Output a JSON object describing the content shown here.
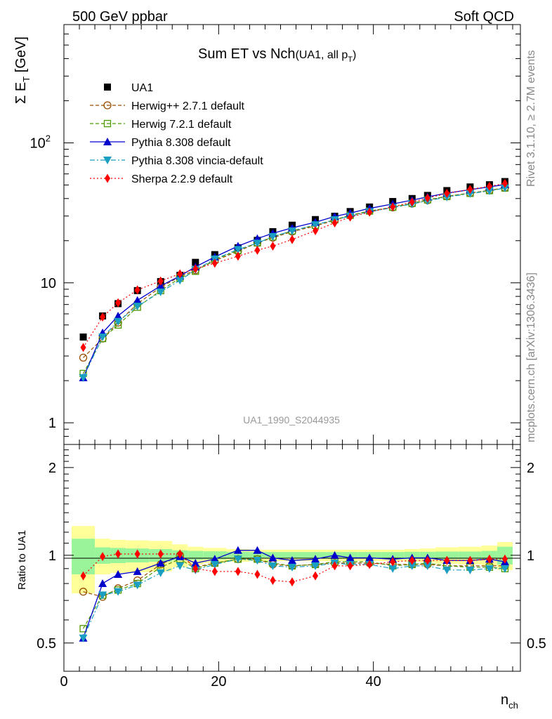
{
  "header": {
    "left": "500 GeV ppbar",
    "right": "Soft QCD"
  },
  "side_labels": {
    "top": "Rivet 3.1.10, ≥ 2.7M events",
    "bottom": "mcplots.cern.ch [arXiv:1306.3436]"
  },
  "chart_data": [
    {
      "type": "line",
      "title_main": "Sum ET vs Nch",
      "title_sub": "(UA1, all p",
      "title_sub_index": "T",
      "title_sub_close": ")",
      "ylabel_main": "Σ E",
      "ylabel_index": "T",
      "ylabel_unit": " [GeV]",
      "xlabel_main": "n",
      "xlabel_index": "ch",
      "watermark": "UA1_1990_S2044935",
      "yscale": "log",
      "xlim": [
        0,
        59
      ],
      "ylim": [
        0.7,
        700
      ],
      "x_ticks": [
        "0",
        "20",
        "40"
      ],
      "y_ticks": [
        "1",
        "10",
        "10²"
      ],
      "legend_position": "top-left",
      "x": [
        2.5,
        5,
        7,
        9.5,
        12.5,
        15,
        17,
        19.5,
        22.5,
        25,
        27,
        29.5,
        32.5,
        35,
        37,
        39.5,
        42.5,
        45,
        47,
        49.5,
        52.5,
        55,
        57
      ],
      "series": [
        {
          "name": "UA1",
          "color": "#000000",
          "marker": "filled-square",
          "line": "none",
          "values": [
            4.1,
            5.8,
            7.1,
            8.8,
            10.2,
            11.3,
            14.0,
            15.9,
            17.8,
            20.1,
            23.2,
            25.8,
            28.3,
            29.9,
            32.3,
            34.8,
            38.1,
            40.0,
            42.1,
            45.6,
            48.4,
            50.2,
            52.9
          ]
        },
        {
          "name": "Herwig++ 2.7.1 default",
          "color": "#994d00",
          "marker": "open-circle",
          "line": "dashed",
          "values": [
            2.92,
            4.0,
            5.2,
            7.1,
            9.3,
            11.1,
            12.3,
            14.4,
            16.8,
            19.3,
            21.0,
            23.2,
            25.5,
            28.0,
            30.3,
            32.5,
            34.6,
            36.8,
            38.9,
            41.5,
            43.8,
            45.8,
            47.8
          ]
        },
        {
          "name": "Herwig 7.2.1 default",
          "color": "#4d9900",
          "marker": "open-square",
          "line": "dashed",
          "values": [
            2.25,
            4.0,
            5.0,
            6.7,
            8.8,
            10.8,
            12.1,
            14.6,
            17.1,
            19.3,
            21.3,
            23.5,
            25.8,
            28.2,
            30.4,
            32.6,
            34.7,
            37.0,
            39.2,
            41.4,
            43.6,
            45.6,
            47.6
          ]
        },
        {
          "name": "Pythia 8.308 default",
          "color": "#0000cc",
          "marker": "filled-triangle-up",
          "line": "solid",
          "values": [
            2.1,
            4.4,
            5.8,
            7.5,
            9.5,
            11.2,
            13.0,
            15.3,
            18.3,
            20.7,
            22.6,
            24.7,
            27.1,
            29.8,
            31.5,
            34.0,
            36.6,
            39.0,
            41.1,
            43.7,
            46.3,
            48.5,
            50.4
          ]
        },
        {
          "name": "Pythia 8.308 vincia-default",
          "color": "#1a9ec2",
          "marker": "filled-triangle-down",
          "line": "dashdot",
          "values": [
            2.1,
            4.1,
            5.3,
            6.8,
            8.6,
            10.4,
            12.4,
            14.8,
            17.3,
            19.2,
            21.4,
            23.5,
            26.0,
            28.2,
            29.9,
            32.2,
            34.5,
            36.6,
            38.5,
            41.0,
            43.4,
            45.3,
            47.6
          ]
        },
        {
          "name": "Sherpa 2.2.9 default",
          "color": "#ff0000",
          "marker": "filled-diamond",
          "line": "dotted",
          "values": [
            3.45,
            5.7,
            7.2,
            8.9,
            10.3,
            11.6,
            12.6,
            13.8,
            15.5,
            17.1,
            18.3,
            20.4,
            23.6,
            26.8,
            29.5,
            32.0,
            34.9,
            37.8,
            40.3,
            43.6,
            46.5,
            48.9,
            51.3
          ]
        }
      ]
    },
    {
      "type": "line",
      "ylabel": "Ratio to UA1",
      "xlabel_main": "n",
      "xlabel_index": "ch",
      "xlim": [
        0,
        59
      ],
      "ylim": [
        0.4,
        2.4
      ],
      "yscale": "log",
      "x_ticks": [
        "0",
        "20",
        "40"
      ],
      "y_ticks": [
        "0.5",
        "1",
        "2"
      ],
      "bands": {
        "x_edges": [
          1,
          4,
          6,
          8,
          11,
          14,
          16,
          18,
          21,
          24,
          26,
          28,
          31,
          34,
          36,
          38,
          41,
          44,
          46,
          48,
          51,
          54,
          56,
          58
        ],
        "stat_fill": "#9af59a",
        "syst_fill": "#ffff99",
        "stat_half_width": [
          0.14,
          0.065,
          0.06,
          0.055,
          0.05,
          0.04,
          0.035,
          0.032,
          0.028,
          0.026,
          0.026,
          0.026,
          0.026,
          0.026,
          0.026,
          0.026,
          0.026,
          0.028,
          0.028,
          0.03,
          0.03,
          0.035,
          0.07
        ],
        "syst_half_width": [
          0.26,
          0.14,
          0.13,
          0.125,
          0.12,
          0.09,
          0.07,
          0.06,
          0.05,
          0.045,
          0.045,
          0.045,
          0.045,
          0.045,
          0.045,
          0.045,
          0.045,
          0.05,
          0.055,
          0.065,
          0.07,
          0.08,
          0.11
        ]
      },
      "series": [
        {
          "name": "Herwig++ 2.7.1 default",
          "color": "#994d00",
          "marker": "open-circle",
          "line": "dashed",
          "values": [
            0.75,
            0.72,
            0.77,
            0.82,
            0.93,
            1.0,
            0.91,
            0.94,
            0.97,
            0.97,
            0.93,
            0.92,
            0.93,
            0.94,
            0.94,
            0.94,
            0.93,
            0.93,
            0.93,
            0.92,
            0.92,
            0.92,
            0.92
          ]
        },
        {
          "name": "Herwig 7.2.1 default",
          "color": "#4d9900",
          "marker": "open-square",
          "line": "dashed",
          "values": [
            0.56,
            0.73,
            0.76,
            0.8,
            0.91,
            0.97,
            0.9,
            0.94,
            0.97,
            0.97,
            0.94,
            0.92,
            0.93,
            0.95,
            0.95,
            0.95,
            0.92,
            0.93,
            0.94,
            0.92,
            0.91,
            0.91,
            0.9
          ]
        },
        {
          "name": "Pythia 8.308 default",
          "color": "#0000cc",
          "marker": "filled-triangle-up",
          "line": "solid",
          "values": [
            0.52,
            0.8,
            0.86,
            0.88,
            0.94,
            0.99,
            0.94,
            0.97,
            1.04,
            1.04,
            0.98,
            0.96,
            0.97,
            1.0,
            0.98,
            0.98,
            0.97,
            0.98,
            0.98,
            0.96,
            0.96,
            0.97,
            0.95
          ]
        },
        {
          "name": "Pythia 8.308 vincia-default",
          "color": "#1a9ec2",
          "marker": "filled-triangle-down",
          "line": "dashdot",
          "values": [
            0.52,
            0.73,
            0.75,
            0.79,
            0.87,
            0.92,
            0.89,
            0.93,
            0.97,
            0.96,
            0.92,
            0.91,
            0.92,
            0.94,
            0.93,
            0.93,
            0.9,
            0.92,
            0.92,
            0.89,
            0.89,
            0.9,
            0.9
          ]
        },
        {
          "name": "Sherpa 2.2.9 default",
          "color": "#ff0000",
          "marker": "filled-diamond",
          "line": "dotted",
          "values": [
            0.85,
            0.99,
            1.01,
            1.01,
            1.01,
            1.01,
            0.9,
            0.88,
            0.88,
            0.86,
            0.82,
            0.81,
            0.85,
            0.92,
            0.92,
            0.93,
            0.95,
            0.96,
            0.96,
            0.96,
            0.96,
            0.97,
            0.97
          ]
        }
      ]
    }
  ]
}
